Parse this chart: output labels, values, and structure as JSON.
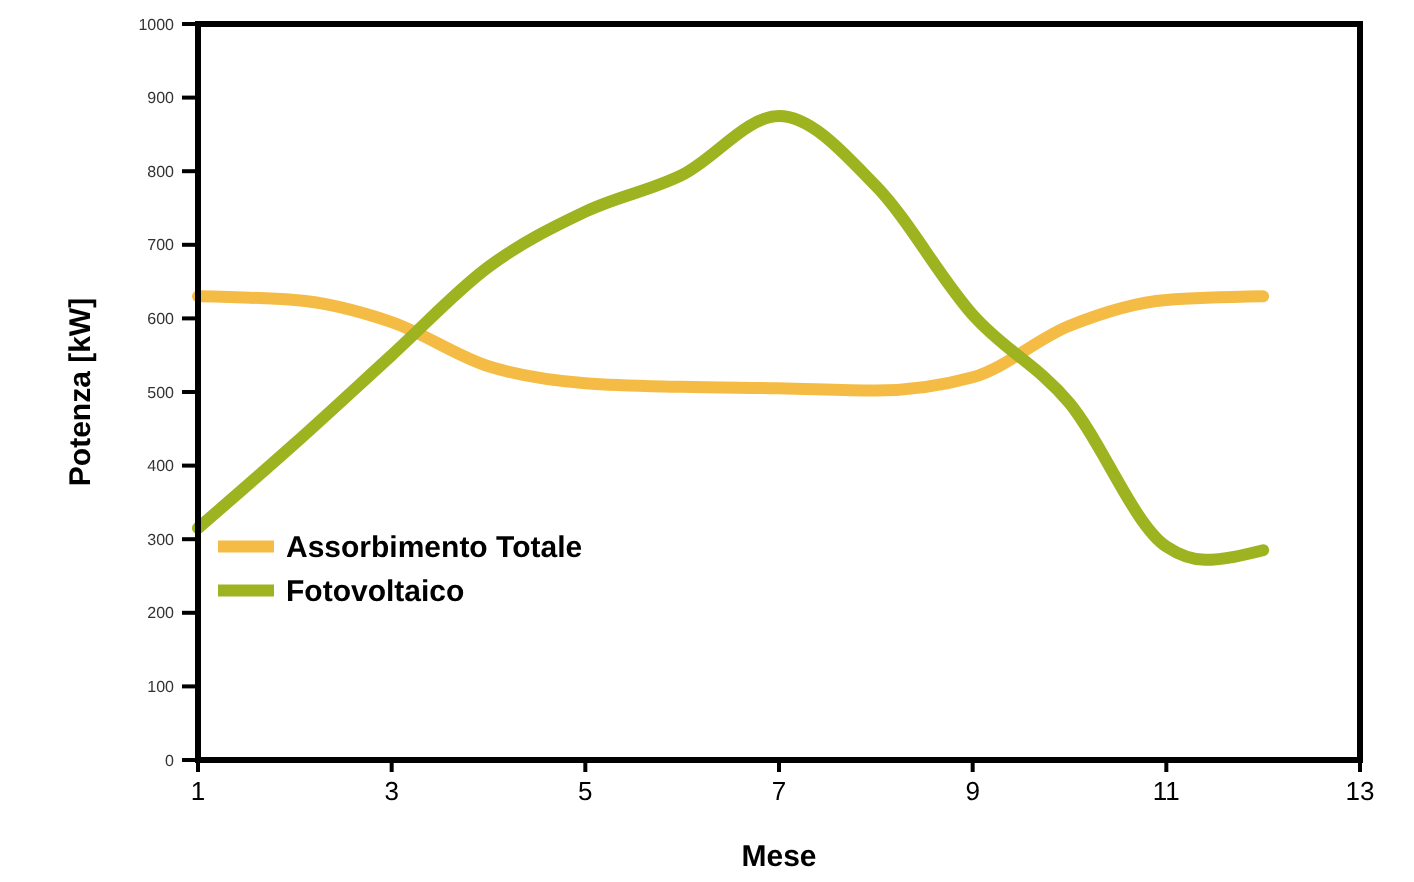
{
  "chart_data": {
    "type": "line",
    "xlabel": "Mese",
    "ylabel": "Potenza  [kW]",
    "xlim": [
      1,
      13
    ],
    "xticks": [
      1,
      3,
      5,
      7,
      9,
      11,
      13
    ],
    "ylim": [
      0,
      1000
    ],
    "yticks": [
      0,
      100,
      200,
      300,
      400,
      500,
      600,
      700,
      800,
      900,
      1000
    ],
    "grid": false,
    "legend": "left",
    "marker": "none",
    "line_style": "solid",
    "series": [
      {
        "name": "Assorbimento Totale",
        "color": "#f5bc45",
        "x": [
          1,
          2,
          3,
          4,
          5,
          6,
          7,
          8,
          9,
          10,
          11,
          12
        ],
        "values": [
          630,
          625,
          595,
          535,
          512,
          507,
          505,
          502,
          520,
          590,
          625,
          630
        ]
      },
      {
        "name": "Fotovoltaico",
        "color": "#9db320",
        "x": [
          1,
          2,
          3,
          4,
          5,
          6,
          7,
          8,
          9,
          10,
          11,
          11.4,
          12
        ],
        "values": [
          315,
          430,
          550,
          670,
          745,
          795,
          875,
          780,
          605,
          485,
          290,
          272,
          285
        ]
      }
    ]
  }
}
